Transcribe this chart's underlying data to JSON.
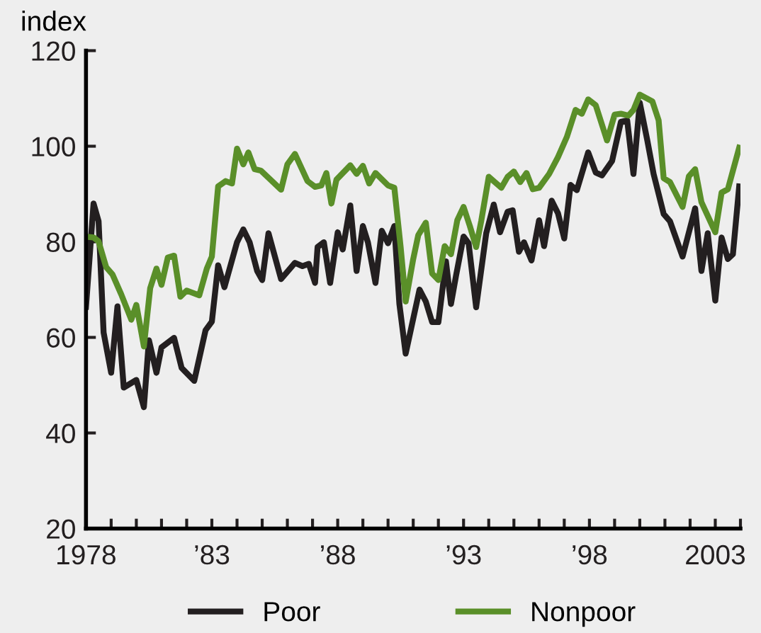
{
  "chart_data": {
    "type": "line",
    "ylabel": "index",
    "xlim": [
      1978,
      2004
    ],
    "ylim": [
      20,
      120
    ],
    "yticks": [
      20,
      40,
      60,
      80,
      100,
      120
    ],
    "xticks": [
      1978,
      {
        "value": 1979,
        "label": null
      },
      {
        "value": 1980,
        "label": null
      },
      {
        "value": 1981,
        "label": null
      },
      {
        "value": 1982,
        "label": null
      },
      {
        "value": 1983,
        "label": "’83"
      },
      {
        "value": 1984,
        "label": null
      },
      {
        "value": 1985,
        "label": null
      },
      {
        "value": 1986,
        "label": null
      },
      {
        "value": 1987,
        "label": null
      },
      {
        "value": 1988,
        "label": "’88"
      },
      {
        "value": 1989,
        "label": null
      },
      {
        "value": 1990,
        "label": null
      },
      {
        "value": 1991,
        "label": null
      },
      {
        "value": 1992,
        "label": null
      },
      {
        "value": 1993,
        "label": "’93"
      },
      {
        "value": 1994,
        "label": null
      },
      {
        "value": 1995,
        "label": null
      },
      {
        "value": 1996,
        "label": null
      },
      {
        "value": 1997,
        "label": null
      },
      {
        "value": 1998,
        "label": "’98"
      },
      {
        "value": 1999,
        "label": null
      },
      {
        "value": 2000,
        "label": null
      },
      {
        "value": 2001,
        "label": null
      },
      {
        "value": 2002,
        "label": null
      },
      2003,
      {
        "value": 2004,
        "label": null
      }
    ],
    "grid": false,
    "legend": "bottom",
    "marker": "none",
    "line_style": "solid",
    "series": [
      {
        "name": "Poor",
        "color": "#231f20",
        "x": [
          1978.0,
          1978.3,
          1978.5,
          1978.7,
          1979.0,
          1979.25,
          1979.5,
          1980.0,
          1980.3,
          1980.5,
          1980.8,
          1981.0,
          1981.5,
          1981.8,
          1982.3,
          1982.75,
          1983.0,
          1983.25,
          1983.5,
          1984.0,
          1984.25,
          1984.5,
          1984.8,
          1985.0,
          1985.25,
          1985.75,
          1986.3,
          1986.6,
          1986.85,
          1987.1,
          1987.2,
          1987.45,
          1987.7,
          1988.0,
          1988.2,
          1988.5,
          1988.75,
          1989.0,
          1989.2,
          1989.5,
          1989.75,
          1990.0,
          1990.25,
          1990.45,
          1990.7,
          1991.25,
          1991.5,
          1991.75,
          1992.0,
          1992.3,
          1992.5,
          1992.7,
          1993.0,
          1993.2,
          1993.5,
          1993.9,
          1994.2,
          1994.45,
          1994.75,
          1994.95,
          1995.2,
          1995.4,
          1995.7,
          1996.0,
          1996.2,
          1996.5,
          1996.75,
          1997.0,
          1997.25,
          1997.5,
          1997.95,
          1998.25,
          1998.5,
          1998.9,
          1999.25,
          1999.5,
          1999.75,
          2000.0,
          2000.3,
          2000.55,
          2000.95,
          2001.2,
          2001.7,
          2002.2,
          2002.45,
          2002.7,
          2003.0,
          2003.25,
          2003.5,
          2003.7,
          2003.95
        ],
        "values": [
          66.4,
          88.0,
          84.3,
          61.0,
          52.6,
          66.5,
          49.5,
          51.1,
          45.4,
          59.4,
          52.6,
          57.9,
          59.9,
          53.6,
          50.9,
          61.5,
          63.3,
          75.1,
          70.5,
          79.9,
          82.6,
          79.9,
          73.9,
          72.0,
          81.8,
          72.2,
          75.6,
          74.9,
          75.4,
          71.4,
          78.9,
          79.9,
          71.4,
          82.0,
          78.4,
          87.6,
          73.9,
          83.3,
          79.9,
          71.4,
          82.3,
          79.7,
          83.3,
          67.0,
          56.6,
          70.0,
          67.5,
          63.2,
          63.2,
          75.9,
          67.0,
          72.9,
          81.1,
          79.7,
          66.3,
          81.8,
          87.8,
          82.0,
          86.3,
          86.6,
          77.9,
          79.9,
          76.1,
          84.5,
          79.1,
          88.6,
          86.0,
          80.7,
          91.9,
          90.8,
          98.7,
          94.5,
          93.9,
          96.9,
          105.1,
          105.4,
          94.2,
          109.1,
          101.2,
          94.2,
          85.8,
          84.3,
          76.9,
          87.0,
          73.9,
          81.8,
          67.7,
          80.9,
          76.4,
          77.4,
          91.6
        ]
      },
      {
        "name": "Nonpoor",
        "color": "#5a8f29",
        "x": [
          1978.1,
          1978.3,
          1978.5,
          1978.8,
          1979.05,
          1979.4,
          1979.8,
          1980.0,
          1980.3,
          1980.55,
          1980.8,
          1981.0,
          1981.25,
          1981.5,
          1981.75,
          1982.0,
          1982.5,
          1982.8,
          1983.0,
          1983.25,
          1983.55,
          1983.8,
          1984.0,
          1984.25,
          1984.45,
          1984.7,
          1984.95,
          1985.75,
          1986.0,
          1986.3,
          1986.8,
          1987.1,
          1987.35,
          1987.55,
          1987.75,
          1987.95,
          1988.5,
          1988.75,
          1989.0,
          1989.25,
          1989.5,
          1990.0,
          1990.25,
          1990.5,
          1990.7,
          1991.0,
          1991.2,
          1991.5,
          1991.75,
          1992.0,
          1992.25,
          1992.5,
          1992.75,
          1993.0,
          1993.25,
          1993.5,
          1993.7,
          1994.0,
          1994.5,
          1994.75,
          1995.0,
          1995.25,
          1995.5,
          1995.75,
          1996.0,
          1996.4,
          1996.75,
          1997.1,
          1997.45,
          1997.7,
          1997.95,
          1998.25,
          1998.7,
          1999.0,
          1999.25,
          1999.55,
          1999.75,
          2000.0,
          2000.5,
          2000.75,
          2000.95,
          2001.2,
          2001.7,
          2001.95,
          2002.2,
          2002.45,
          2003.0,
          2003.25,
          2003.5,
          2003.95
        ],
        "values": [
          81.0,
          80.9,
          80.1,
          74.7,
          73.2,
          69.0,
          63.7,
          66.8,
          58.1,
          70.3,
          74.4,
          71.0,
          76.7,
          77.1,
          68.5,
          69.8,
          68.8,
          74.4,
          76.9,
          91.6,
          92.7,
          92.2,
          99.5,
          96.2,
          98.7,
          95.2,
          94.9,
          90.9,
          96.2,
          98.4,
          92.7,
          91.5,
          91.8,
          94.4,
          88.0,
          93.0,
          96.0,
          94.2,
          95.9,
          92.2,
          94.4,
          91.8,
          91.3,
          78.9,
          67.5,
          76.4,
          81.4,
          84.0,
          73.4,
          72.0,
          79.1,
          77.4,
          84.5,
          87.3,
          83.3,
          78.9,
          84.3,
          93.6,
          91.3,
          93.6,
          94.7,
          92.5,
          94.4,
          91.0,
          91.3,
          94.2,
          97.7,
          101.9,
          107.6,
          106.8,
          109.8,
          108.6,
          101.2,
          106.6,
          106.8,
          106.4,
          107.6,
          110.8,
          109.4,
          105.4,
          93.3,
          92.5,
          87.3,
          93.7,
          95.2,
          88.3,
          82.0,
          90.3,
          91.0,
          99.7
        ]
      }
    ]
  }
}
